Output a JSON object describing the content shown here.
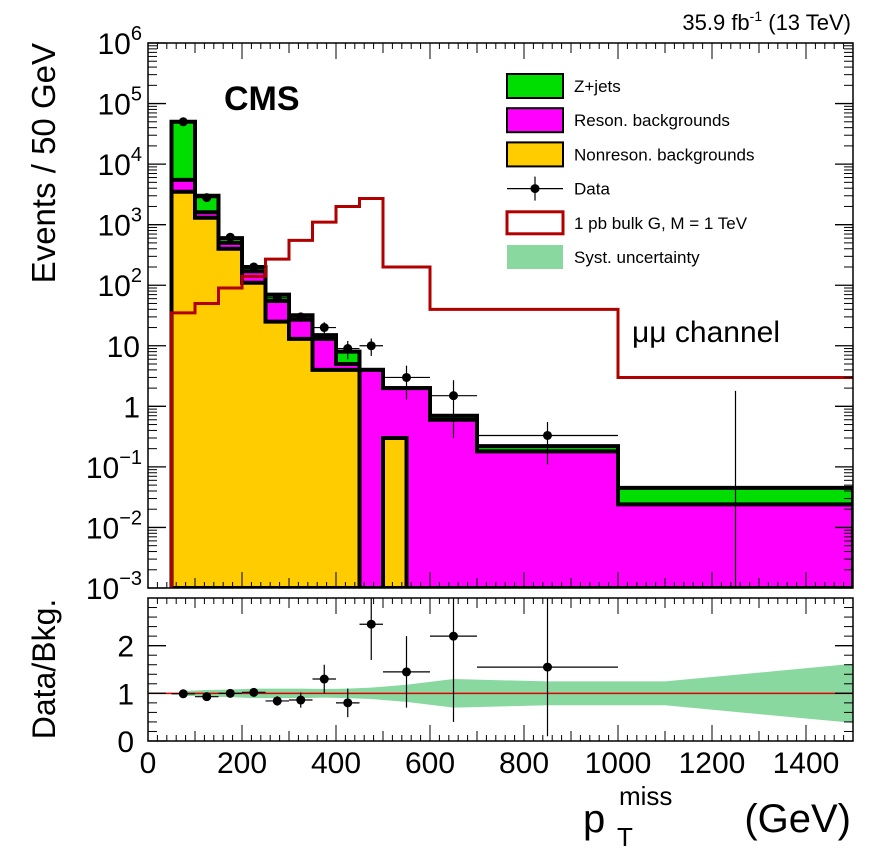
{
  "header": {
    "lumi": "35.9 fb",
    "lumi_exp": "-1",
    "energy": "(13 TeV)",
    "experiment": "CMS",
    "channel": "μμ channel"
  },
  "chart_data": [
    {
      "type": "bar",
      "subtype": "stacked-histogram",
      "x_scale": "linear",
      "y_scale": "log",
      "xlim": [
        0,
        1500
      ],
      "ylim": [
        0.001,
        1000000
      ],
      "ylabel": "Events / 50 GeV",
      "y_ticks": [
        {
          "v": 0.001,
          "m": "10",
          "e": "−3"
        },
        {
          "v": 0.01,
          "m": "10",
          "e": "−2"
        },
        {
          "v": 0.1,
          "m": "10",
          "e": "−1"
        },
        {
          "v": 1,
          "m": "1",
          "e": ""
        },
        {
          "v": 10,
          "m": "10",
          "e": ""
        },
        {
          "v": 100,
          "m": "10",
          "e": "2"
        },
        {
          "v": 1000,
          "m": "10",
          "e": "3"
        },
        {
          "v": 10000,
          "m": "10",
          "e": "4"
        },
        {
          "v": 100000,
          "m": "10",
          "e": "5"
        },
        {
          "v": 1000000,
          "m": "10",
          "e": "6"
        }
      ],
      "bin_edges": [
        50,
        100,
        150,
        200,
        250,
        300,
        350,
        400,
        450,
        500,
        600,
        700,
        1000,
        1500
      ],
      "series": [
        {
          "name": "Nonreson. backgrounds",
          "color": "#ffcc00",
          "edges": [
            50,
            100,
            150,
            200,
            250,
            300,
            350,
            400,
            450,
            500,
            550,
            600
          ],
          "values": [
            3500,
            1300,
            400,
            110,
            25,
            13,
            4,
            4,
            0.001,
            0.3,
            0.001
          ]
        },
        {
          "name": "Reson. backgrounds",
          "color": "#ff00ff",
          "values": [
            5500,
            1600,
            500,
            170,
            55,
            27,
            13,
            5,
            4,
            2,
            0.6,
            0.18,
            0.024
          ]
        },
        {
          "name": "Z+jets",
          "color": "#00dd00",
          "values": [
            50000,
            3000,
            600,
            200,
            70,
            32,
            15,
            8,
            4,
            2,
            0.7,
            0.22,
            0.045
          ]
        }
      ],
      "data": {
        "name": "Data",
        "points": [
          {
            "x": 75,
            "y": 50000,
            "xerr": 25,
            "ylo": 49776,
            "yhi": 50224
          },
          {
            "x": 125,
            "y": 2800,
            "xerr": 25,
            "ylo": 2747,
            "yhi": 2853
          },
          {
            "x": 175,
            "y": 620,
            "xerr": 25,
            "ylo": 595,
            "yhi": 645
          },
          {
            "x": 225,
            "y": 200,
            "xerr": 25,
            "ylo": 186,
            "yhi": 214
          },
          {
            "x": 275,
            "y": 62,
            "xerr": 25,
            "ylo": 54,
            "yhi": 70
          },
          {
            "x": 325,
            "y": 30,
            "xerr": 25,
            "ylo": 24.5,
            "yhi": 35.5
          },
          {
            "x": 375,
            "y": 20,
            "xerr": 25,
            "ylo": 15.5,
            "yhi": 24.5
          },
          {
            "x": 425,
            "y": 9,
            "xerr": 25,
            "ylo": 6,
            "yhi": 12
          },
          {
            "x": 475,
            "y": 10,
            "xerr": 25,
            "ylo": 6.8,
            "yhi": 13.2
          },
          {
            "x": 550,
            "y": 3,
            "xerr": 50,
            "ylo": 1.3,
            "yhi": 4.7
          },
          {
            "x": 650,
            "y": 1.5,
            "xerr": 50,
            "ylo": 0.3,
            "yhi": 2.7
          },
          {
            "x": 850,
            "y": 0.33,
            "xerr": 150,
            "ylo": 0.11,
            "yhi": 0.55
          },
          {
            "x": 1250,
            "y": 0.001,
            "xerr": 0,
            "ylo": 0.001,
            "yhi": 1.8
          }
        ]
      },
      "signal": {
        "name": "1 pb bulk G, M = 1 TeV",
        "color": "#b00000",
        "edges": [
          50,
          100,
          150,
          200,
          250,
          300,
          350,
          400,
          450,
          500,
          600,
          700,
          1000,
          1500
        ],
        "values": [
          35,
          50,
          90,
          140,
          270,
          550,
          1100,
          2000,
          2700,
          200,
          40,
          40,
          3
        ]
      },
      "uncertainty": {
        "name": "Syst. uncertainty",
        "color": "#88d8a0"
      },
      "legend": {
        "placement": "top-right",
        "entries": [
          {
            "label": "Z+jets",
            "kind": "fill",
            "color": "#00dd00"
          },
          {
            "label": "Reson. backgrounds",
            "kind": "fill",
            "color": "#ff00ff"
          },
          {
            "label": "Nonreson. backgrounds",
            "kind": "fill",
            "color": "#ffcc00"
          },
          {
            "label": "Data",
            "kind": "marker",
            "color": "#000000"
          },
          {
            "label": "1 pb bulk G, M = 1 TeV",
            "kind": "line-box",
            "color": "#b00000"
          },
          {
            "label": "Syst. uncertainty",
            "kind": "fill",
            "color": "#88d8a0"
          }
        ]
      }
    },
    {
      "type": "scatter",
      "subtype": "ratio",
      "xlim": [
        0,
        1500
      ],
      "ylim": [
        0,
        3
      ],
      "xlabel": "p",
      "xlabel_sub": "T",
      "xlabel_sup": "miss",
      "xlabel_unit": "(GeV)",
      "ylabel": "Data/Bkg.",
      "x_ticks": [
        0,
        200,
        400,
        600,
        800,
        1000,
        1200,
        1400
      ],
      "y_ticks": [
        0,
        1,
        2
      ],
      "reference_line": {
        "y": 1,
        "color": "#dd0000"
      },
      "band": {
        "color": "#88d8a0",
        "x": [
          75,
          125,
          175,
          225,
          275,
          325,
          375,
          425,
          475,
          550,
          650,
          850,
          1100,
          1500
        ],
        "lo": [
          0.95,
          0.93,
          0.92,
          0.9,
          0.9,
          0.9,
          0.91,
          0.9,
          0.88,
          0.82,
          0.7,
          0.75,
          0.75,
          0.38
        ],
        "hi": [
          1.05,
          1.07,
          1.08,
          1.1,
          1.1,
          1.1,
          1.09,
          1.1,
          1.12,
          1.18,
          1.3,
          1.25,
          1.25,
          1.62
        ]
      },
      "points": [
        {
          "x": 75,
          "y": 0.99,
          "xerr": 25,
          "ylo": 0.95,
          "yhi": 1.03
        },
        {
          "x": 125,
          "y": 0.93,
          "xerr": 25,
          "ylo": 0.91,
          "yhi": 0.95
        },
        {
          "x": 175,
          "y": 1.0,
          "xerr": 25,
          "ylo": 0.96,
          "yhi": 1.04
        },
        {
          "x": 225,
          "y": 1.02,
          "xerr": 25,
          "ylo": 0.95,
          "yhi": 1.09
        },
        {
          "x": 275,
          "y": 0.84,
          "xerr": 25,
          "ylo": 0.74,
          "yhi": 0.94
        },
        {
          "x": 325,
          "y": 0.86,
          "xerr": 25,
          "ylo": 0.7,
          "yhi": 1.02
        },
        {
          "x": 375,
          "y": 1.3,
          "xerr": 25,
          "ylo": 1.0,
          "yhi": 1.6
        },
        {
          "x": 425,
          "y": 0.8,
          "xerr": 25,
          "ylo": 0.5,
          "yhi": 1.1
        },
        {
          "x": 475,
          "y": 2.45,
          "xerr": 25,
          "ylo": 1.7,
          "yhi": 3.0
        },
        {
          "x": 550,
          "y": 1.45,
          "xerr": 50,
          "ylo": 0.7,
          "yhi": 2.2
        },
        {
          "x": 650,
          "y": 2.2,
          "xerr": 50,
          "ylo": 0.4,
          "yhi": 3.0
        },
        {
          "x": 850,
          "y": 1.55,
          "xerr": 150,
          "ylo": 0.1,
          "yhi": 3.0
        }
      ]
    }
  ]
}
